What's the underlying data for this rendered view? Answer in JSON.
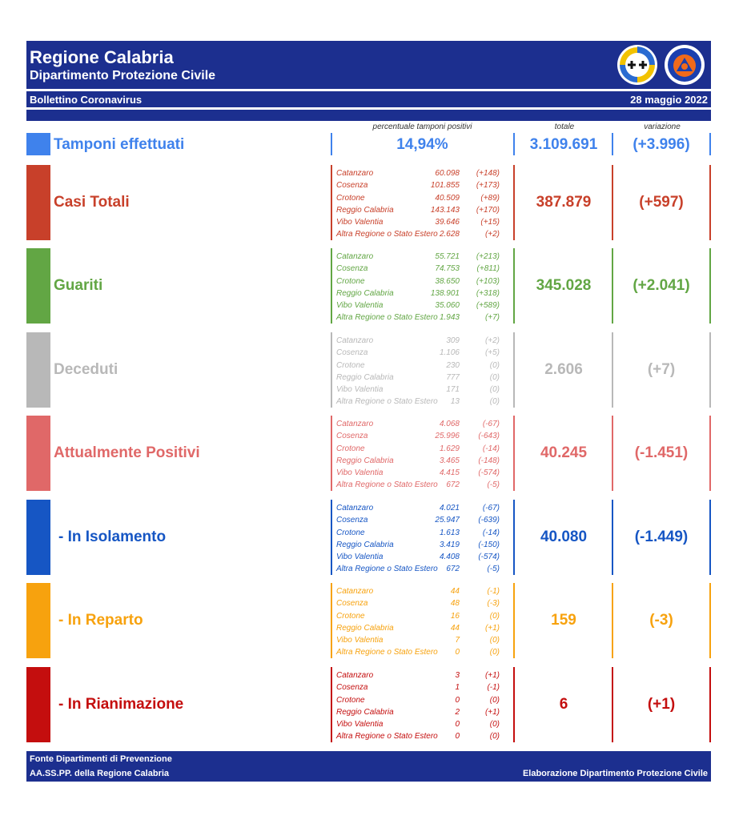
{
  "header": {
    "title": "Regione Calabria",
    "subtitle": "Dipartimento Protezione Civile",
    "bulletin": "Bollettino Coronavirus",
    "date": "28 maggio 2022"
  },
  "columns": {
    "percent_label": "percentuale tamponi positivi",
    "total_label": "totale",
    "variation_label": "variazione"
  },
  "tamponi": {
    "label": "Tamponi effettuati",
    "percent": "14,94%",
    "total": "3.109.691",
    "variation": "(+3.996)"
  },
  "sections": [
    {
      "label": "Casi Totali",
      "color": "#c8402a",
      "total": "387.879",
      "variation": "(+597)",
      "rows": [
        {
          "name": "Catanzaro",
          "value": "60.098",
          "var": "(+148)"
        },
        {
          "name": "Cosenza",
          "value": "101.855",
          "var": "(+173)"
        },
        {
          "name": "Crotone",
          "value": "40.509",
          "var": "(+89)"
        },
        {
          "name": "Reggio Calabria",
          "value": "143.143",
          "var": "(+170)"
        },
        {
          "name": "Vibo Valentia",
          "value": "39.646",
          "var": "(+15)"
        },
        {
          "name": "Altra Regione o Stato Estero",
          "value": "2.628",
          "var": "(+2)"
        }
      ]
    },
    {
      "label": "Guariti",
      "color": "#62a644",
      "total": "345.028",
      "variation": "(+2.041)",
      "rows": [
        {
          "name": "Catanzaro",
          "value": "55.721",
          "var": "(+213)"
        },
        {
          "name": "Cosenza",
          "value": "74.753",
          "var": "(+811)"
        },
        {
          "name": "Crotone",
          "value": "38.650",
          "var": "(+103)"
        },
        {
          "name": "Reggio Calabria",
          "value": "138.901",
          "var": "(+318)"
        },
        {
          "name": "Vibo Valentia",
          "value": "35.060",
          "var": "(+589)"
        },
        {
          "name": "Altra Regione o Stato Estero",
          "value": "1.943",
          "var": "(+7)"
        }
      ]
    },
    {
      "label": "Deceduti",
      "color": "#b8b8b8",
      "total": "2.606",
      "variation": "(+7)",
      "rows": [
        {
          "name": "Catanzaro",
          "value": "309",
          "var": "(+2)"
        },
        {
          "name": "Cosenza",
          "value": "1.106",
          "var": "(+5)"
        },
        {
          "name": "Crotone",
          "value": "230",
          "var": "(0)"
        },
        {
          "name": "Reggio Calabria",
          "value": "777",
          "var": "(0)"
        },
        {
          "name": "Vibo Valentia",
          "value": "171",
          "var": "(0)"
        },
        {
          "name": "Altra Regione o Stato Estero",
          "value": "13",
          "var": "(0)"
        }
      ]
    },
    {
      "label": "Attualmente Positivi",
      "color": "#e06868",
      "total": "40.245",
      "variation": "(-1.451)",
      "rows": [
        {
          "name": "Catanzaro",
          "value": "4.068",
          "var": "(-67)"
        },
        {
          "name": "Cosenza",
          "value": "25.996",
          "var": "(-643)"
        },
        {
          "name": "Crotone",
          "value": "1.629",
          "var": "(-14)"
        },
        {
          "name": "Reggio Calabria",
          "value": "3.465",
          "var": "(-148)"
        },
        {
          "name": "Vibo Valentia",
          "value": "4.415",
          "var": "(-574)"
        },
        {
          "name": "Altra Regione o Stato Estero",
          "value": "672",
          "var": "(-5)"
        }
      ]
    },
    {
      "label": "- In Isolamento",
      "color": "#1656c4",
      "total": "40.080",
      "variation": "(-1.449)",
      "rows": [
        {
          "name": "Catanzaro",
          "value": "4.021",
          "var": "(-67)"
        },
        {
          "name": "Cosenza",
          "value": "25.947",
          "var": "(-639)"
        },
        {
          "name": "Crotone",
          "value": "1.613",
          "var": "(-14)"
        },
        {
          "name": "Reggio Calabria",
          "value": "3.419",
          "var": "(-150)"
        },
        {
          "name": "Vibo Valentia",
          "value": "4.408",
          "var": "(-574)"
        },
        {
          "name": "Altra Regione o Stato Estero",
          "value": "672",
          "var": "(-5)"
        }
      ]
    },
    {
      "label": "- In Reparto",
      "color": "#f7a20e",
      "total": "159",
      "variation": "(-3)",
      "rows": [
        {
          "name": "Catanzaro",
          "value": "44",
          "var": "(-1)"
        },
        {
          "name": "Cosenza",
          "value": "48",
          "var": "(-3)"
        },
        {
          "name": "Crotone",
          "value": "16",
          "var": "(0)"
        },
        {
          "name": "Reggio Calabria",
          "value": "44",
          "var": "(+1)"
        },
        {
          "name": "Vibo Valentia",
          "value": "7",
          "var": "(0)"
        },
        {
          "name": "Altra Regione o Stato Estero",
          "value": "0",
          "var": "(0)"
        }
      ]
    },
    {
      "label": "- In Rianimazione",
      "color": "#c40e0e",
      "total": "6",
      "variation": "(+1)",
      "rows": [
        {
          "name": "Catanzaro",
          "value": "3",
          "var": "(+1)"
        },
        {
          "name": "Cosenza",
          "value": "1",
          "var": "(-1)"
        },
        {
          "name": "Crotone",
          "value": "0",
          "var": "(0)"
        },
        {
          "name": "Reggio Calabria",
          "value": "2",
          "var": "(+1)"
        },
        {
          "name": "Vibo Valentia",
          "value": "0",
          "var": "(0)"
        },
        {
          "name": "Altra Regione o Stato Estero",
          "value": "0",
          "var": "(0)"
        }
      ]
    }
  ],
  "footer": {
    "source_line1": "Fonte Dipartimenti di Prevenzione",
    "source_line2": "AA.SS.PP.  della Regione Calabria",
    "credit": "Elaborazione Dipartimento Protezione Civile"
  },
  "logos": {
    "region": "calabria-coat-of-arms-icon",
    "civil_protection": "protezione-civile-logo-icon",
    "civil_protection_text": "PROTEZIONE CIVILE"
  }
}
